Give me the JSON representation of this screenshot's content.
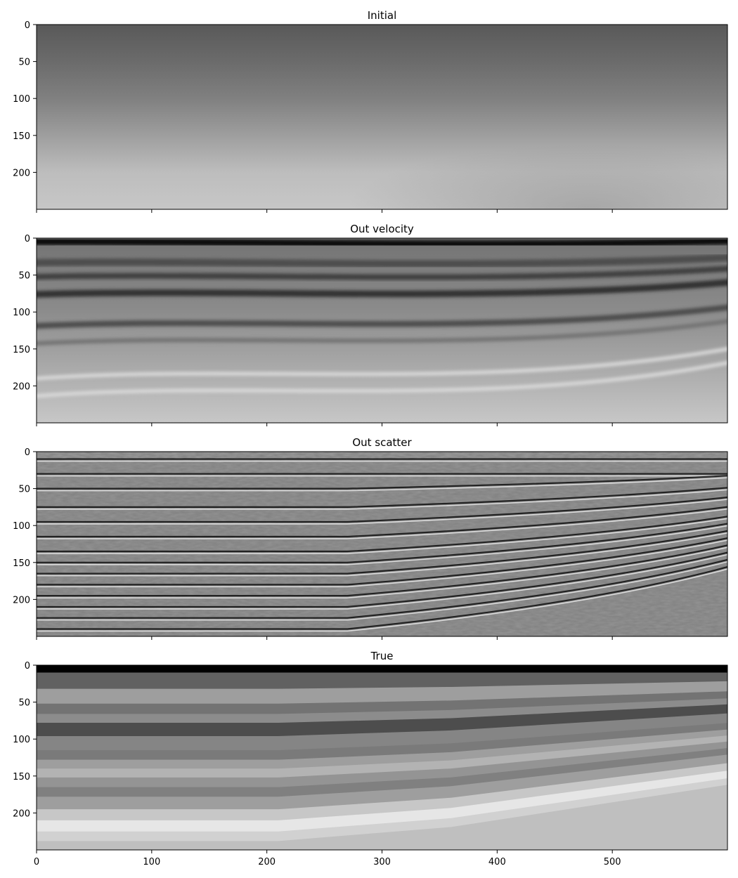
{
  "chart_data": [
    {
      "type": "heatmap",
      "title": "Initial",
      "colormap": "gray",
      "xlim": [
        0,
        600
      ],
      "ylim": [
        250,
        0
      ],
      "xticks": [
        "0",
        "100",
        "200",
        "300",
        "400",
        "500"
      ],
      "yticks": [
        "0",
        "50",
        "100",
        "150",
        "200"
      ],
      "show_x_tick_labels": false,
      "pattern": "smooth",
      "depth_gray_profile": [
        0.35,
        0.42,
        0.5,
        0.62,
        0.74,
        0.78
      ]
    },
    {
      "type": "heatmap",
      "title": "Out velocity",
      "colormap": "gray",
      "xlim": [
        0,
        600
      ],
      "ylim": [
        250,
        0
      ],
      "xticks": [
        "0",
        "100",
        "200",
        "300",
        "400",
        "500"
      ],
      "yticks": [
        "0",
        "50",
        "100",
        "150",
        "200"
      ],
      "show_x_tick_labels": false,
      "pattern": "smooth-layers",
      "bands": [
        {
          "depth": 5,
          "gray": 0.05,
          "width": 10
        },
        {
          "depth": 35,
          "gray": 0.3,
          "width": 10
        },
        {
          "depth": 55,
          "gray": 0.25,
          "width": 8
        },
        {
          "depth": 80,
          "gray": 0.2,
          "width": 9
        },
        {
          "depth": 125,
          "gray": 0.3,
          "width": 8
        },
        {
          "depth": 150,
          "gray": 0.45,
          "width": 6
        },
        {
          "depth": 200,
          "gray": 0.85,
          "width": 5
        },
        {
          "depth": 225,
          "gray": 0.85,
          "width": 5
        }
      ]
    },
    {
      "type": "heatmap",
      "title": "Out scatter",
      "colormap": "gray",
      "xlim": [
        0,
        600
      ],
      "ylim": [
        250,
        0
      ],
      "xticks": [
        "0",
        "100",
        "200",
        "300",
        "400",
        "500"
      ],
      "yticks": [
        "0",
        "50",
        "100",
        "150",
        "200"
      ],
      "show_x_tick_labels": false,
      "pattern": "reflectors",
      "reflector_depths": [
        10,
        30,
        50,
        75,
        95,
        115,
        135,
        150,
        165,
        180,
        195,
        210,
        225,
        240
      ]
    },
    {
      "type": "heatmap",
      "title": "True",
      "colormap": "gray",
      "xlim": [
        0,
        600
      ],
      "ylim": [
        250,
        0
      ],
      "xticks": [
        "0",
        "100",
        "200",
        "300",
        "400",
        "500"
      ],
      "yticks": [
        "0",
        "50",
        "100",
        "150",
        "200"
      ],
      "show_x_tick_labels": true,
      "pattern": "blocky-layers",
      "layers": [
        {
          "top": 0,
          "gray": 0.0
        },
        {
          "top": 10,
          "gray": 0.38
        },
        {
          "top": 32,
          "gray": 0.62
        },
        {
          "top": 52,
          "gray": 0.45
        },
        {
          "top": 66,
          "gray": 0.55
        },
        {
          "top": 78,
          "gray": 0.3
        },
        {
          "top": 96,
          "gray": 0.52
        },
        {
          "top": 115,
          "gray": 0.48
        },
        {
          "top": 128,
          "gray": 0.62
        },
        {
          "top": 140,
          "gray": 0.7
        },
        {
          "top": 152,
          "gray": 0.58
        },
        {
          "top": 165,
          "gray": 0.5
        },
        {
          "top": 178,
          "gray": 0.62
        },
        {
          "top": 195,
          "gray": 0.78
        },
        {
          "top": 210,
          "gray": 0.9
        },
        {
          "top": 225,
          "gray": 0.82
        },
        {
          "top": 238,
          "gray": 0.75
        }
      ]
    }
  ]
}
